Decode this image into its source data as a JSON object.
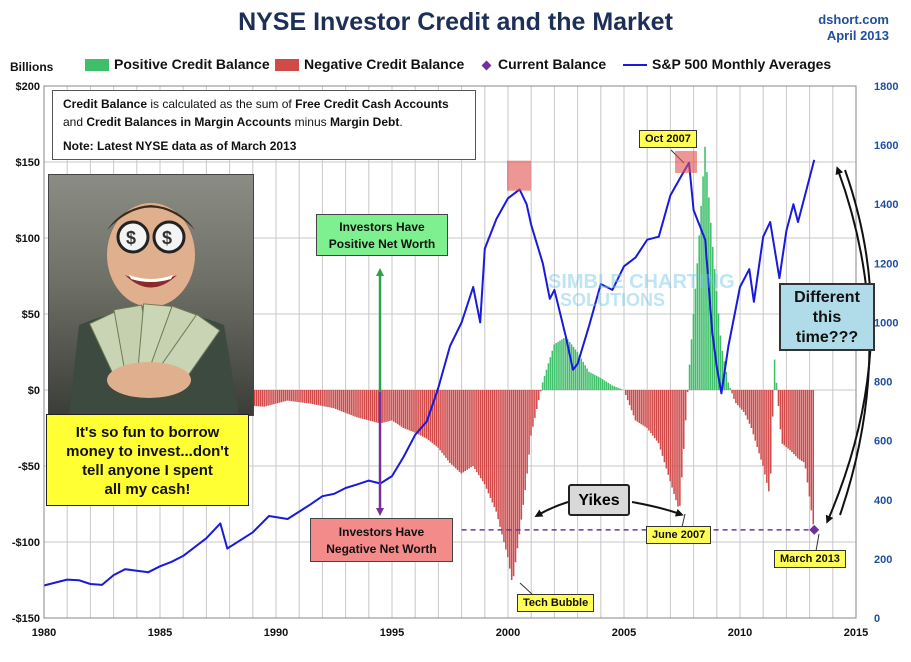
{
  "header": {
    "title": "NYSE Investor Credit and the Market",
    "source_line1": "dshort.com",
    "source_line2": "April 2013"
  },
  "legend": {
    "positive": "Positive Credit Balance",
    "negative": "Negative Credit Balance",
    "current": "Current Balance",
    "sp500": "S&P 500 Monthly Averages"
  },
  "axis_unit_left": "Billions",
  "note": {
    "t1": "Credit Balance",
    "t2": " is calculated as the sum of ",
    "t3": "Free Credit Cash Accounts",
    "t4": "and ",
    "t5": "Credit Balances in Margin Accounts",
    "t6": " minus ",
    "t7": "Margin Debt",
    "t8": ".",
    "t9": "Note: Latest NYSE data as of March 2013"
  },
  "annotations": {
    "fun_line1": "It's so fun to borrow",
    "fun_line2": "money to invest...don't",
    "fun_line3": "tell anyone I spent",
    "fun_line4": "all my cash!",
    "pos_line1": "Investors Have",
    "pos_line2": "Positive Net Worth",
    "neg_line1": "Investors Have",
    "neg_line2": "Negative Net Worth",
    "yikes": "Yikes",
    "diff_line1": "Different",
    "diff_line2": "this",
    "diff_line3": "time???",
    "oct2007": "Oct 2007",
    "june2007": "June 2007",
    "tech": "Tech Bubble",
    "march2013": "March 2013",
    "watermark_line1": "SIMBLE CHARTING",
    "watermark_line2": "SOLUTIONS"
  },
  "colors": {
    "positive": "#3fbf6a",
    "negative": "#d04a4a",
    "sp500": "#1a1adc",
    "current": "#7030a0",
    "title": "#1c2f56",
    "right_axis": "#1f4fa0"
  },
  "chart_data": {
    "type": "bar",
    "title": "NYSE Investor Credit and the Market",
    "xlim": [
      1980,
      2015
    ],
    "x_ticks": [
      1980,
      1985,
      1990,
      1995,
      2000,
      2005,
      2010,
      2015
    ],
    "x_tick_labels": [
      "1980",
      "1985",
      "1990",
      "1995",
      "2000",
      "2005",
      "2010",
      "2015"
    ],
    "ylim_left": [
      -150,
      200
    ],
    "y_left_ticks": [
      -150,
      -100,
      -50,
      0,
      50,
      100,
      150,
      200
    ],
    "y_left_tick_labels": [
      "-$150",
      "-$100",
      "-$50",
      "$0",
      "$50",
      "$100",
      "$150",
      "$200"
    ],
    "ylim_right": [
      0,
      1800
    ],
    "y_right_ticks": [
      0,
      200,
      400,
      600,
      800,
      1000,
      1200,
      1400,
      1600,
      1800
    ],
    "y_right_tick_labels": [
      "0",
      "200",
      "400",
      "600",
      "800",
      "1000",
      "1200",
      "1400",
      "1600",
      "1800"
    ],
    "grid": true,
    "credit_balance": {
      "name": "Credit Balance (Billions)",
      "points": [
        [
          1980.0,
          0
        ],
        [
          1988.0,
          0
        ],
        [
          1988.5,
          -10
        ],
        [
          1989.5,
          -11
        ],
        [
          1990.5,
          -7
        ],
        [
          1991.5,
          -9
        ],
        [
          1992.5,
          -12
        ],
        [
          1993.5,
          -18
        ],
        [
          1994.5,
          -22
        ],
        [
          1995.0,
          -20
        ],
        [
          1995.5,
          -25
        ],
        [
          1996.0,
          -28
        ],
        [
          1996.5,
          -32
        ],
        [
          1997.0,
          -38
        ],
        [
          1997.5,
          -48
        ],
        [
          1998.0,
          -55
        ],
        [
          1998.5,
          -50
        ],
        [
          1999.0,
          -62
        ],
        [
          1999.5,
          -80
        ],
        [
          2000.0,
          -110
        ],
        [
          2000.2,
          -128
        ],
        [
          2000.5,
          -95
        ],
        [
          2000.8,
          -60
        ],
        [
          2001.0,
          -30
        ],
        [
          2001.5,
          5
        ],
        [
          2002.0,
          30
        ],
        [
          2002.5,
          35
        ],
        [
          2003.0,
          25
        ],
        [
          2003.5,
          12
        ],
        [
          2004.0,
          8
        ],
        [
          2004.5,
          3
        ],
        [
          2005.0,
          0
        ],
        [
          2005.5,
          -20
        ],
        [
          2006.0,
          -25
        ],
        [
          2006.5,
          -35
        ],
        [
          2007.0,
          -60
        ],
        [
          2007.4,
          -80
        ],
        [
          2007.8,
          10
        ],
        [
          2008.2,
          90
        ],
        [
          2008.5,
          160
        ],
        [
          2008.8,
          100
        ],
        [
          2009.2,
          30
        ],
        [
          2009.5,
          5
        ],
        [
          2009.8,
          -8
        ],
        [
          2010.2,
          -15
        ],
        [
          2010.5,
          -25
        ],
        [
          2011.0,
          -50
        ],
        [
          2011.3,
          -70
        ],
        [
          2011.5,
          20
        ],
        [
          2011.8,
          -35
        ],
        [
          2012.2,
          -40
        ],
        [
          2012.5,
          -45
        ],
        [
          2012.8,
          -48
        ],
        [
          2013.2,
          -92
        ]
      ]
    },
    "sp500": {
      "name": "S&P 500 Monthly Averages",
      "points": [
        [
          1980.0,
          110
        ],
        [
          1980.5,
          120
        ],
        [
          1981.0,
          130
        ],
        [
          1981.5,
          128
        ],
        [
          1982.0,
          115
        ],
        [
          1982.5,
          112
        ],
        [
          1983.0,
          145
        ],
        [
          1983.5,
          165
        ],
        [
          1984.0,
          160
        ],
        [
          1984.5,
          155
        ],
        [
          1985.0,
          175
        ],
        [
          1985.5,
          190
        ],
        [
          1986.0,
          210
        ],
        [
          1986.5,
          240
        ],
        [
          1987.0,
          270
        ],
        [
          1987.6,
          320
        ],
        [
          1987.9,
          235
        ],
        [
          1988.5,
          265
        ],
        [
          1989.0,
          290
        ],
        [
          1989.7,
          345
        ],
        [
          1990.5,
          335
        ],
        [
          1991.0,
          360
        ],
        [
          1991.5,
          385
        ],
        [
          1992.0,
          412
        ],
        [
          1992.5,
          420
        ],
        [
          1993.0,
          440
        ],
        [
          1993.5,
          452
        ],
        [
          1994.0,
          465
        ],
        [
          1994.5,
          455
        ],
        [
          1995.0,
          480
        ],
        [
          1995.5,
          545
        ],
        [
          1996.0,
          620
        ],
        [
          1996.5,
          665
        ],
        [
          1997.0,
          780
        ],
        [
          1997.5,
          920
        ],
        [
          1998.0,
          1000
        ],
        [
          1998.5,
          1120
        ],
        [
          1998.8,
          1000
        ],
        [
          1999.0,
          1250
        ],
        [
          1999.5,
          1350
        ],
        [
          2000.0,
          1420
        ],
        [
          2000.5,
          1450
        ],
        [
          2000.8,
          1400
        ],
        [
          2001.0,
          1330
        ],
        [
          2001.5,
          1200
        ],
        [
          2001.8,
          1080
        ],
        [
          2002.0,
          1110
        ],
        [
          2002.5,
          950
        ],
        [
          2002.8,
          840
        ],
        [
          2003.0,
          860
        ],
        [
          2003.5,
          990
        ],
        [
          2004.0,
          1130
        ],
        [
          2004.5,
          1110
        ],
        [
          2005.0,
          1190
        ],
        [
          2005.5,
          1220
        ],
        [
          2006.0,
          1280
        ],
        [
          2006.5,
          1290
        ],
        [
          2007.0,
          1430
        ],
        [
          2007.5,
          1500
        ],
        [
          2007.8,
          1540
        ],
        [
          2008.0,
          1380
        ],
        [
          2008.5,
          1280
        ],
        [
          2008.8,
          970
        ],
        [
          2009.0,
          850
        ],
        [
          2009.2,
          760
        ],
        [
          2009.5,
          920
        ],
        [
          2010.0,
          1120
        ],
        [
          2010.4,
          1180
        ],
        [
          2010.6,
          1070
        ],
        [
          2011.0,
          1290
        ],
        [
          2011.3,
          1340
        ],
        [
          2011.7,
          1150
        ],
        [
          2012.0,
          1310
        ],
        [
          2012.3,
          1400
        ],
        [
          2012.5,
          1340
        ],
        [
          2012.8,
          1430
        ],
        [
          2013.0,
          1490
        ],
        [
          2013.2,
          1550
        ]
      ]
    },
    "current_balance": {
      "x": 2013.2,
      "y": -92,
      "label": "March 2013"
    },
    "reference_level": -92
  }
}
